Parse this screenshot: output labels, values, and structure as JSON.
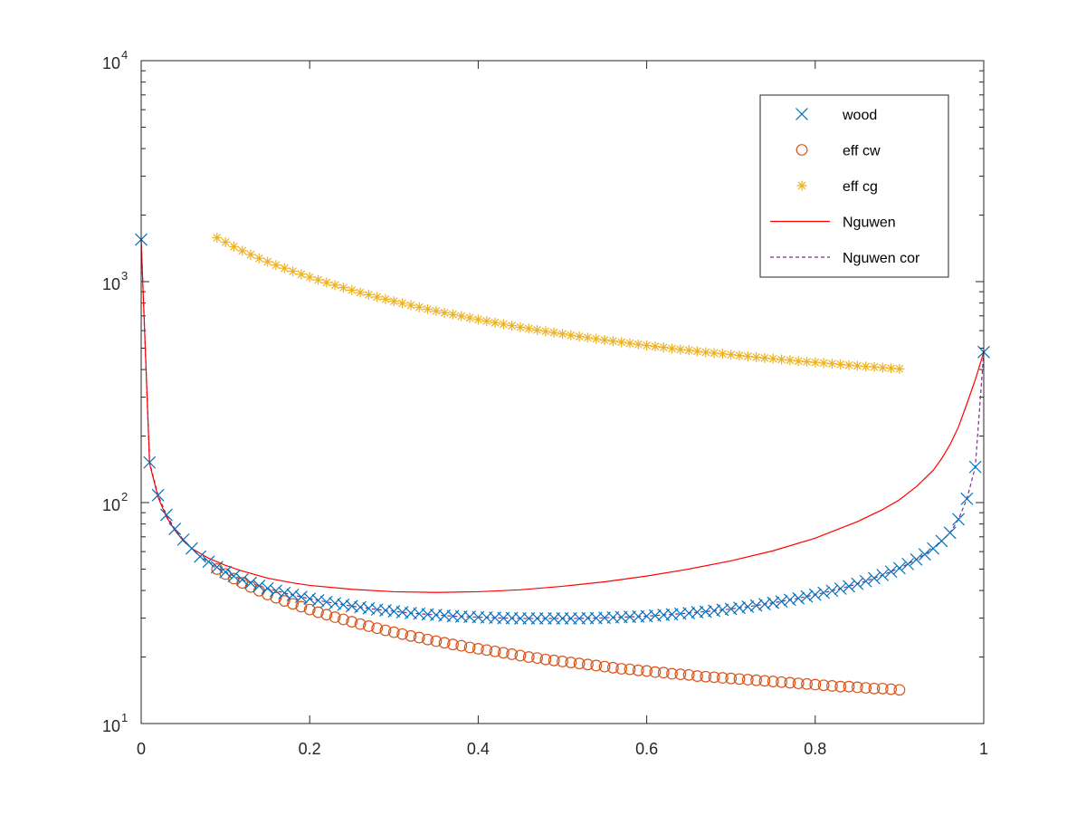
{
  "chart_data": {
    "type": "line",
    "title": "",
    "xlabel": "",
    "ylabel": "",
    "xlim": [
      0,
      1
    ],
    "ylim": [
      10,
      10000
    ],
    "y_scale": "log",
    "grid": false,
    "legend_position": "top-right",
    "x_ticks": [
      {
        "value": 0,
        "label": "0"
      },
      {
        "value": 0.2,
        "label": "0.2"
      },
      {
        "value": 0.4,
        "label": "0.4"
      },
      {
        "value": 0.6,
        "label": "0.6"
      },
      {
        "value": 0.8,
        "label": "0.8"
      },
      {
        "value": 1,
        "label": "1"
      }
    ],
    "y_ticks": [
      {
        "value": 10,
        "base": "10",
        "exp": "1"
      },
      {
        "value": 100,
        "base": "10",
        "exp": "2"
      },
      {
        "value": 1000,
        "base": "10",
        "exp": "3"
      },
      {
        "value": 10000,
        "base": "10",
        "exp": "4"
      }
    ],
    "series": [
      {
        "name": "wood",
        "marker": "x",
        "line": "none",
        "color": "#0072bd",
        "x": [
          0,
          0.01,
          0.02,
          0.03,
          0.04,
          0.05,
          0.06,
          0.07,
          0.08,
          0.09,
          0.1,
          0.11,
          0.12,
          0.13,
          0.14,
          0.15,
          0.16,
          0.17,
          0.18,
          0.19,
          0.2,
          0.21,
          0.22,
          0.23,
          0.24,
          0.25,
          0.26,
          0.27,
          0.28,
          0.29,
          0.3,
          0.31,
          0.32,
          0.33,
          0.34,
          0.35,
          0.36,
          0.37,
          0.38,
          0.39,
          0.4,
          0.41,
          0.42,
          0.43,
          0.44,
          0.45,
          0.46,
          0.47,
          0.48,
          0.49,
          0.5,
          0.51,
          0.52,
          0.53,
          0.54,
          0.55,
          0.56,
          0.57,
          0.58,
          0.59,
          0.6,
          0.61,
          0.62,
          0.63,
          0.64,
          0.65,
          0.66,
          0.67,
          0.68,
          0.69,
          0.7,
          0.71,
          0.72,
          0.73,
          0.74,
          0.75,
          0.76,
          0.77,
          0.78,
          0.79,
          0.8,
          0.81,
          0.82,
          0.83,
          0.84,
          0.85,
          0.86,
          0.87,
          0.88,
          0.89,
          0.9,
          0.91,
          0.92,
          0.93,
          0.94,
          0.95,
          0.96,
          0.97,
          0.98,
          0.99,
          1
        ],
        "y": [
          1550,
          152,
          108,
          88,
          76,
          68,
          62,
          57,
          54,
          51,
          48.5,
          46.5,
          44.8,
          43.3,
          42,
          40.9,
          39.9,
          39,
          38.2,
          37.4,
          36.7,
          36.1,
          35.5,
          35,
          34.5,
          34,
          33.6,
          33.2,
          32.8,
          32.5,
          32.2,
          31.9,
          31.6,
          31.4,
          31.2,
          31,
          30.8,
          30.6,
          30.5,
          30.4,
          30.3,
          30.2,
          30.1,
          30,
          30,
          29.9,
          29.9,
          29.9,
          29.9,
          29.9,
          29.9,
          29.9,
          29.9,
          30,
          30,
          30.1,
          30.2,
          30.3,
          30.4,
          30.5,
          30.6,
          30.8,
          31,
          31.2,
          31.4,
          31.6,
          31.9,
          32.1,
          32.4,
          32.7,
          33,
          33.4,
          33.8,
          34.2,
          34.7,
          35.2,
          35.7,
          36.3,
          36.9,
          37.6,
          38.3,
          39.1,
          39.9,
          40.8,
          41.8,
          42.9,
          44.1,
          45.5,
          47,
          48.7,
          50.5,
          52.7,
          55.3,
          58.3,
          62,
          67,
          73,
          84,
          104,
          145,
          480
        ]
      },
      {
        "name": "eff cw",
        "marker": "o",
        "line": "none",
        "color": "#d95319",
        "x": [
          0.09,
          0.1,
          0.11,
          0.12,
          0.13,
          0.14,
          0.15,
          0.16,
          0.17,
          0.18,
          0.19,
          0.2,
          0.21,
          0.22,
          0.23,
          0.24,
          0.25,
          0.26,
          0.27,
          0.28,
          0.29,
          0.3,
          0.31,
          0.32,
          0.33,
          0.34,
          0.35,
          0.36,
          0.37,
          0.38,
          0.39,
          0.4,
          0.41,
          0.42,
          0.43,
          0.44,
          0.45,
          0.46,
          0.47,
          0.48,
          0.49,
          0.5,
          0.51,
          0.52,
          0.53,
          0.54,
          0.55,
          0.56,
          0.57,
          0.58,
          0.59,
          0.6,
          0.61,
          0.62,
          0.63,
          0.64,
          0.65,
          0.66,
          0.67,
          0.68,
          0.69,
          0.7,
          0.71,
          0.72,
          0.73,
          0.74,
          0.75,
          0.76,
          0.77,
          0.78,
          0.79,
          0.8,
          0.81,
          0.82,
          0.83,
          0.84,
          0.85,
          0.86,
          0.87,
          0.88,
          0.89,
          0.9
        ],
        "y": [
          50,
          47.5,
          45.3,
          43.3,
          41.5,
          39.9,
          38.4,
          37.1,
          35.9,
          34.8,
          33.8,
          32.8,
          31.9,
          31.1,
          30.3,
          29.6,
          28.9,
          28.2,
          27.6,
          27,
          26.4,
          25.9,
          25.4,
          24.9,
          24.5,
          24,
          23.6,
          23.2,
          22.8,
          22.5,
          22.1,
          21.8,
          21.5,
          21.2,
          20.9,
          20.6,
          20.3,
          20,
          19.8,
          19.5,
          19.3,
          19.1,
          18.9,
          18.7,
          18.5,
          18.3,
          18.1,
          17.9,
          17.7,
          17.6,
          17.4,
          17.3,
          17.1,
          17,
          16.8,
          16.7,
          16.6,
          16.4,
          16.3,
          16.2,
          16.1,
          16,
          15.9,
          15.8,
          15.7,
          15.6,
          15.5,
          15.4,
          15.3,
          15.2,
          15.1,
          15,
          14.9,
          14.8,
          14.7,
          14.7,
          14.6,
          14.5,
          14.4,
          14.4,
          14.3,
          14.2
        ]
      },
      {
        "name": "eff cg",
        "marker": "*",
        "line": "none",
        "color": "#edb120",
        "x": [
          0.09,
          0.1,
          0.11,
          0.12,
          0.13,
          0.14,
          0.15,
          0.16,
          0.17,
          0.18,
          0.19,
          0.2,
          0.21,
          0.22,
          0.23,
          0.24,
          0.25,
          0.26,
          0.27,
          0.28,
          0.29,
          0.3,
          0.31,
          0.32,
          0.33,
          0.34,
          0.35,
          0.36,
          0.37,
          0.38,
          0.39,
          0.4,
          0.41,
          0.42,
          0.43,
          0.44,
          0.45,
          0.46,
          0.47,
          0.48,
          0.49,
          0.5,
          0.51,
          0.52,
          0.53,
          0.54,
          0.55,
          0.56,
          0.57,
          0.58,
          0.59,
          0.6,
          0.61,
          0.62,
          0.63,
          0.64,
          0.65,
          0.66,
          0.67,
          0.68,
          0.69,
          0.7,
          0.71,
          0.72,
          0.73,
          0.74,
          0.75,
          0.76,
          0.77,
          0.78,
          0.79,
          0.8,
          0.81,
          0.82,
          0.83,
          0.84,
          0.85,
          0.86,
          0.87,
          0.88,
          0.89,
          0.9
        ],
        "y": [
          1580,
          1510,
          1440,
          1380,
          1325,
          1275,
          1230,
          1188,
          1150,
          1114,
          1080,
          1048,
          1018,
          990,
          964,
          939,
          915,
          893,
          872,
          852,
          833,
          815,
          798,
          782,
          766,
          751,
          737,
          723,
          710,
          698,
          686,
          674,
          663,
          652,
          642,
          632,
          622,
          613,
          604,
          596,
          588,
          580,
          572,
          565,
          558,
          551,
          544,
          538,
          532,
          526,
          520,
          514,
          509,
          504,
          498,
          493,
          489,
          484,
          479,
          475,
          471,
          467,
          463,
          459,
          455,
          451,
          448,
          444,
          441,
          437,
          434,
          431,
          428,
          425,
          422,
          419,
          416,
          413,
          411,
          408,
          405,
          403
        ]
      },
      {
        "name": "Nguwen",
        "marker": "none",
        "line": "solid",
        "color": "#ff0000",
        "x": [
          0,
          0.01,
          0.02,
          0.03,
          0.04,
          0.05,
          0.06,
          0.08,
          0.1,
          0.12,
          0.15,
          0.18,
          0.2,
          0.25,
          0.3,
          0.35,
          0.4,
          0.45,
          0.5,
          0.55,
          0.6,
          0.65,
          0.7,
          0.75,
          0.8,
          0.85,
          0.88,
          0.9,
          0.92,
          0.94,
          0.95,
          0.96,
          0.97,
          0.98,
          0.99,
          1
        ],
        "y": [
          1550,
          150,
          106,
          86,
          75,
          67,
          62,
          56,
          52,
          49,
          45.5,
          43.3,
          42.2,
          40.5,
          39.5,
          39.2,
          39.5,
          40.3,
          41.8,
          43.8,
          46.5,
          50,
          54.5,
          60.5,
          69,
          82,
          93,
          103,
          118,
          140,
          158,
          183,
          220,
          280,
          360,
          480
        ]
      },
      {
        "name": "Nguwen cor",
        "marker": "none",
        "line": "dashed",
        "color": "#7e2f8e",
        "x": [
          0,
          0.01,
          0.02,
          0.03,
          0.04,
          0.05,
          0.06,
          0.07,
          0.08,
          0.09,
          0.1,
          0.11,
          0.12,
          0.13,
          0.14,
          0.15,
          0.16,
          0.17,
          0.18,
          0.19,
          0.2,
          0.21,
          0.22,
          0.23,
          0.24,
          0.25,
          0.26,
          0.27,
          0.28,
          0.29,
          0.3,
          0.31,
          0.32,
          0.33,
          0.34,
          0.35,
          0.36,
          0.37,
          0.38,
          0.39,
          0.4,
          0.41,
          0.42,
          0.43,
          0.44,
          0.45,
          0.46,
          0.47,
          0.48,
          0.49,
          0.5,
          0.51,
          0.52,
          0.53,
          0.54,
          0.55,
          0.56,
          0.57,
          0.58,
          0.59,
          0.6,
          0.61,
          0.62,
          0.63,
          0.64,
          0.65,
          0.66,
          0.67,
          0.68,
          0.69,
          0.7,
          0.71,
          0.72,
          0.73,
          0.74,
          0.75,
          0.76,
          0.77,
          0.78,
          0.79,
          0.8,
          0.81,
          0.82,
          0.83,
          0.84,
          0.85,
          0.86,
          0.87,
          0.88,
          0.89,
          0.9,
          0.91,
          0.92,
          0.93,
          0.94,
          0.95,
          0.96,
          0.97,
          0.98,
          0.99,
          1
        ],
        "y": [
          1550,
          152,
          108,
          88,
          76,
          68,
          62,
          57,
          54,
          51,
          48.5,
          46.5,
          44.8,
          43.3,
          42,
          40.9,
          39.9,
          39,
          38.2,
          37.4,
          36.7,
          36.1,
          35.5,
          35,
          34.5,
          34,
          33.6,
          33.2,
          32.8,
          32.5,
          32.2,
          31.9,
          31.6,
          31.4,
          31.2,
          31,
          30.8,
          30.6,
          30.5,
          30.4,
          30.3,
          30.2,
          30.1,
          30,
          30,
          29.9,
          29.9,
          29.9,
          29.9,
          29.9,
          29.9,
          29.9,
          29.9,
          30,
          30,
          30.1,
          30.2,
          30.3,
          30.4,
          30.5,
          30.6,
          30.8,
          31,
          31.2,
          31.4,
          31.6,
          31.9,
          32.1,
          32.4,
          32.7,
          33,
          33.4,
          33.8,
          34.2,
          34.7,
          35.2,
          35.7,
          36.3,
          36.9,
          37.6,
          38.3,
          39.1,
          39.9,
          40.8,
          41.8,
          42.9,
          44.1,
          45.5,
          47,
          48.7,
          50.5,
          52.7,
          55.3,
          58.3,
          62,
          67,
          73,
          84,
          104,
          145,
          480
        ]
      }
    ]
  }
}
